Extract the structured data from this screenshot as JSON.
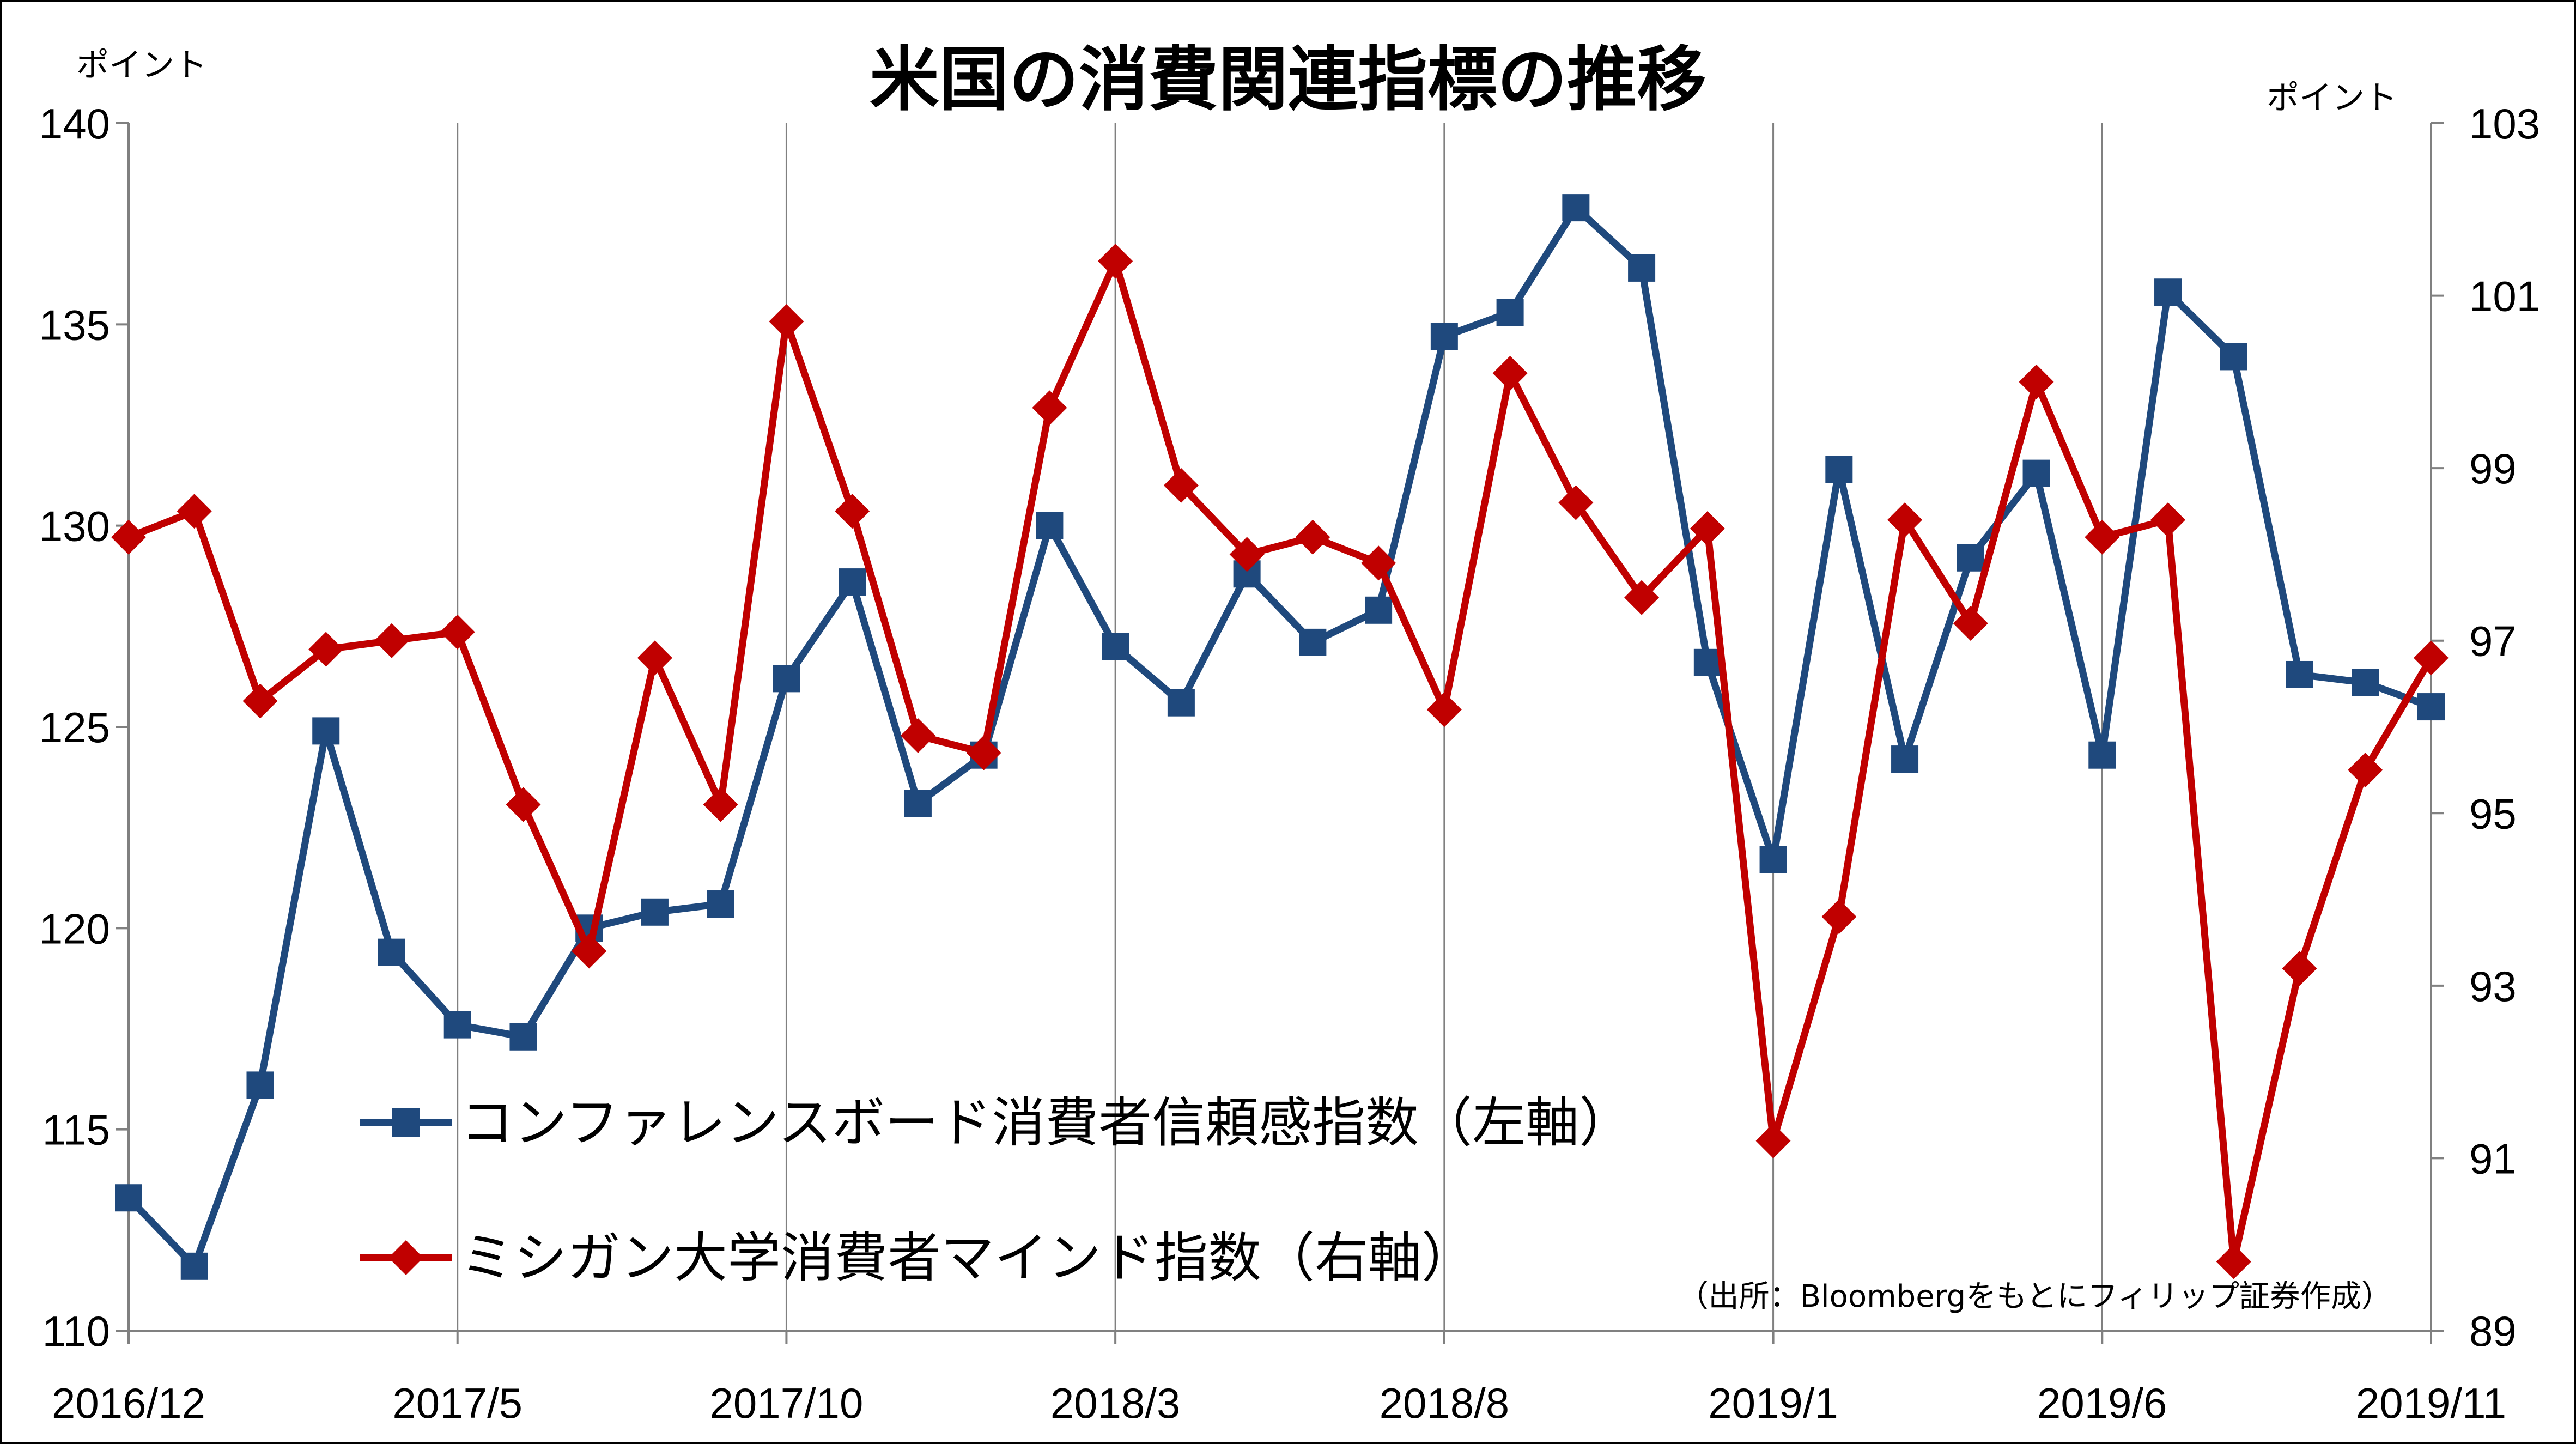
{
  "chart_data": {
    "type": "line",
    "title": "米国の消費関連指標の推移",
    "left_unit": "ポイント",
    "right_unit": "ポイント",
    "source": "（出所：Bloombergをもとにフィリップ証券作成）",
    "x_tick_labels": [
      "2016/12",
      "2017/5",
      "2017/10",
      "2018/3",
      "2018/8",
      "2019/1",
      "2019/6",
      "2019/11"
    ],
    "months": [
      "2016/12",
      "2017/1",
      "2017/2",
      "2017/3",
      "2017/4",
      "2017/5",
      "2017/6",
      "2017/7",
      "2017/8",
      "2017/9",
      "2017/10",
      "2017/11",
      "2017/12",
      "2018/1",
      "2018/2",
      "2018/3",
      "2018/4",
      "2018/5",
      "2018/6",
      "2018/7",
      "2018/8",
      "2018/9",
      "2018/10",
      "2018/11",
      "2018/12",
      "2019/1",
      "2019/2",
      "2019/3",
      "2019/4",
      "2019/5",
      "2019/6",
      "2019/7",
      "2019/8",
      "2019/9",
      "2019/10",
      "2019/11"
    ],
    "y_left": {
      "min": 110,
      "max": 140,
      "ticks": [
        110,
        115,
        120,
        125,
        130,
        135,
        140
      ]
    },
    "y_right": {
      "min": 89,
      "max": 103,
      "ticks": [
        89,
        91,
        93,
        95,
        97,
        99,
        101,
        103
      ]
    },
    "grid": "vertical",
    "legend_position": "bottom-left",
    "series": [
      {
        "name": "コンファレンスボード消費者信頼感指数（左軸）",
        "axis": "left",
        "color": "#1f497d",
        "marker": "square",
        "values": [
          113.3,
          111.6,
          116.1,
          124.9,
          119.4,
          117.6,
          117.3,
          120.0,
          120.4,
          120.6,
          126.2,
          128.6,
          123.1,
          124.3,
          130.0,
          127.0,
          125.6,
          128.8,
          127.1,
          127.9,
          134.7,
          135.3,
          137.9,
          136.4,
          126.6,
          121.7,
          131.4,
          124.2,
          129.2,
          131.3,
          124.3,
          135.8,
          134.2,
          126.3,
          126.1,
          125.5
        ]
      },
      {
        "name": "ミシガン大学消費者マインド指数（右軸）",
        "axis": "right",
        "color": "#c00000",
        "marker": "diamond",
        "values": [
          98.2,
          98.5,
          96.3,
          96.9,
          97.0,
          97.1,
          95.1,
          93.4,
          96.8,
          95.1,
          100.7,
          98.5,
          95.9,
          95.7,
          99.7,
          101.4,
          98.8,
          98.0,
          98.2,
          97.9,
          96.2,
          100.1,
          98.6,
          97.5,
          98.3,
          91.2,
          93.8,
          98.4,
          97.2,
          100.0,
          98.2,
          98.4,
          89.8,
          93.2,
          95.5,
          96.8
        ]
      }
    ]
  }
}
